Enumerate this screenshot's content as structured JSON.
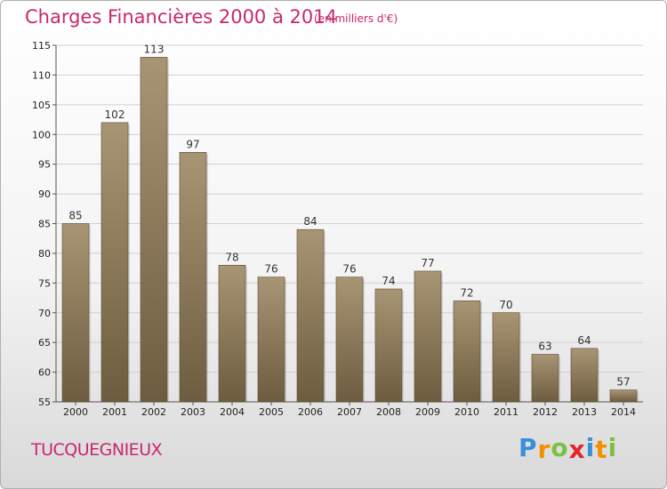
{
  "chart_data": {
    "type": "bar",
    "title": "Charges Financières 2000 à 2014",
    "subtitle": "(en milliers d'€)",
    "categories": [
      "2000",
      "2001",
      "2002",
      "2003",
      "2004",
      "2005",
      "2006",
      "2007",
      "2008",
      "2009",
      "2010",
      "2011",
      "2012",
      "2013",
      "2014"
    ],
    "values": [
      85,
      102,
      113,
      97,
      78,
      76,
      84,
      76,
      74,
      77,
      72,
      70,
      63,
      64,
      57
    ],
    "ylim": [
      55,
      115
    ],
    "yticks": [
      55,
      60,
      65,
      70,
      75,
      80,
      85,
      90,
      95,
      100,
      105,
      110,
      115
    ],
    "grid": true,
    "bar_color_top": "#a89574",
    "bar_color_bottom": "#6e5c40"
  },
  "footer": {
    "place_name": "TUCQUEGNIEUX",
    "logo_letters": [
      "P",
      "r",
      "o",
      "x",
      "i",
      "t",
      "i"
    ],
    "logo_colors": [
      "#3a8fd6",
      "#f29100",
      "#7bc043",
      "#e2262a",
      "#3a8fd6",
      "#f29100",
      "#7bc043"
    ]
  },
  "colors": {
    "accent": "#c8286e",
    "grid": "#d0d0d0"
  }
}
